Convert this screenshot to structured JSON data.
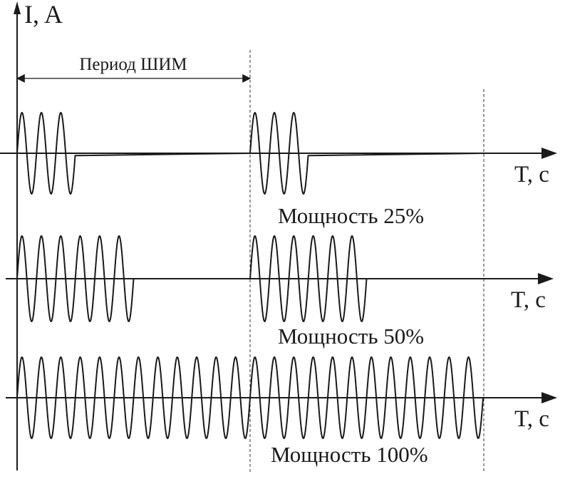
{
  "y_axis_label": "I, A",
  "period_label": "Период ШИМ",
  "rows": [
    {
      "time_label": "T, c",
      "power_label": "Мощность 25%",
      "duty": 0.25,
      "cycles_on": 3
    },
    {
      "time_label": "T, c",
      "power_label": "Мощность 50%",
      "duty": 0.5,
      "cycles_on": 6
    },
    {
      "time_label": "T, c",
      "power_label": "Мощность 100%",
      "duty": 1.0,
      "cycles_on": 12
    }
  ],
  "periods_shown": 2
}
